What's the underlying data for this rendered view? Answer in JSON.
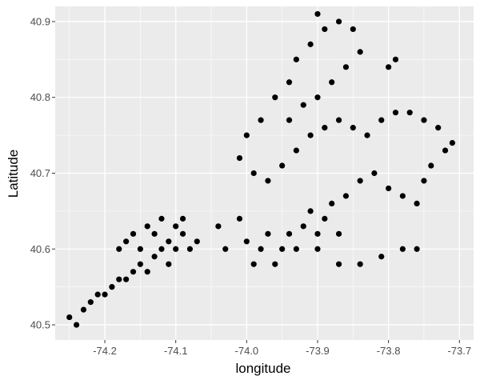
{
  "chart_data": {
    "type": "scatter",
    "title": "",
    "xlabel": "longitude",
    "ylabel": "Latitude",
    "xlim": [
      -74.27,
      -73.68
    ],
    "ylim": [
      40.48,
      40.92
    ],
    "x_ticks": [
      -74.2,
      -74.1,
      -74.0,
      -73.9,
      -73.8,
      -73.7
    ],
    "x_tick_labels": [
      "-74.2",
      "-74.1",
      "-74.0",
      "-73.9",
      "-73.8",
      "-73.7"
    ],
    "y_ticks": [
      40.5,
      40.6,
      40.7,
      40.8,
      40.9
    ],
    "y_tick_labels": [
      "40.5",
      "40.6",
      "40.7",
      "40.8",
      "40.9"
    ],
    "grid": true,
    "legend": "none",
    "colors": {
      "panel": "#ebebeb",
      "grid": "#ffffff",
      "point": "#000000"
    },
    "series": [
      {
        "points": [
          [
            -74.25,
            40.51
          ],
          [
            -74.24,
            40.5
          ],
          [
            -74.23,
            40.52
          ],
          [
            -74.22,
            40.53
          ],
          [
            -74.21,
            40.54
          ],
          [
            -74.2,
            40.54
          ],
          [
            -74.19,
            40.55
          ],
          [
            -74.18,
            40.56
          ],
          [
            -74.17,
            40.56
          ],
          [
            -74.16,
            40.57
          ],
          [
            -74.15,
            40.58
          ],
          [
            -74.14,
            40.57
          ],
          [
            -74.13,
            40.59
          ],
          [
            -74.12,
            40.6
          ],
          [
            -74.11,
            40.61
          ],
          [
            -74.1,
            40.6
          ],
          [
            -74.09,
            40.62
          ],
          [
            -74.08,
            40.6
          ],
          [
            -74.07,
            40.61
          ],
          [
            -74.09,
            40.64
          ],
          [
            -74.1,
            40.63
          ],
          [
            -74.12,
            40.64
          ],
          [
            -74.14,
            40.63
          ],
          [
            -74.16,
            40.62
          ],
          [
            -74.17,
            40.61
          ],
          [
            -74.18,
            40.6
          ],
          [
            -74.15,
            40.6
          ],
          [
            -74.13,
            40.62
          ],
          [
            -74.11,
            40.58
          ],
          [
            -74.04,
            40.63
          ],
          [
            -74.03,
            40.6
          ],
          [
            -74.01,
            40.64
          ],
          [
            -74.0,
            40.61
          ],
          [
            -73.99,
            40.58
          ],
          [
            -73.98,
            40.6
          ],
          [
            -73.97,
            40.62
          ],
          [
            -73.96,
            40.58
          ],
          [
            -73.95,
            40.6
          ],
          [
            -73.94,
            40.62
          ],
          [
            -73.93,
            40.6
          ],
          [
            -73.92,
            40.63
          ],
          [
            -73.91,
            40.65
          ],
          [
            -73.9,
            40.62
          ],
          [
            -73.89,
            40.64
          ],
          [
            -73.88,
            40.66
          ],
          [
            -73.86,
            40.67
          ],
          [
            -73.84,
            40.69
          ],
          [
            -73.82,
            40.7
          ],
          [
            -73.8,
            40.68
          ],
          [
            -73.78,
            40.67
          ],
          [
            -73.76,
            40.66
          ],
          [
            -73.75,
            40.69
          ],
          [
            -73.74,
            40.71
          ],
          [
            -73.72,
            40.73
          ],
          [
            -73.71,
            40.74
          ],
          [
            -73.73,
            40.76
          ],
          [
            -73.75,
            40.77
          ],
          [
            -73.77,
            40.78
          ],
          [
            -73.79,
            40.78
          ],
          [
            -73.81,
            40.77
          ],
          [
            -73.83,
            40.75
          ],
          [
            -73.85,
            40.76
          ],
          [
            -73.87,
            40.77
          ],
          [
            -73.89,
            40.76
          ],
          [
            -73.91,
            40.75
          ],
          [
            -73.93,
            40.73
          ],
          [
            -73.95,
            40.71
          ],
          [
            -73.97,
            40.69
          ],
          [
            -73.99,
            40.7
          ],
          [
            -74.01,
            40.72
          ],
          [
            -74.0,
            40.75
          ],
          [
            -73.98,
            40.77
          ],
          [
            -73.96,
            40.8
          ],
          [
            -73.94,
            40.82
          ],
          [
            -73.93,
            40.85
          ],
          [
            -73.91,
            40.87
          ],
          [
            -73.89,
            40.89
          ],
          [
            -73.87,
            40.9
          ],
          [
            -73.85,
            40.89
          ],
          [
            -73.84,
            40.86
          ],
          [
            -73.86,
            40.84
          ],
          [
            -73.88,
            40.82
          ],
          [
            -73.9,
            40.8
          ],
          [
            -73.92,
            40.79
          ],
          [
            -73.94,
            40.77
          ],
          [
            -73.87,
            40.58
          ],
          [
            -73.84,
            40.58
          ],
          [
            -73.81,
            40.59
          ],
          [
            -73.78,
            40.6
          ],
          [
            -73.76,
            40.6
          ],
          [
            -73.9,
            40.91
          ],
          [
            -73.9,
            40.6
          ],
          [
            -73.87,
            40.62
          ],
          [
            -73.8,
            40.84
          ],
          [
            -73.79,
            40.85
          ]
        ]
      }
    ]
  }
}
